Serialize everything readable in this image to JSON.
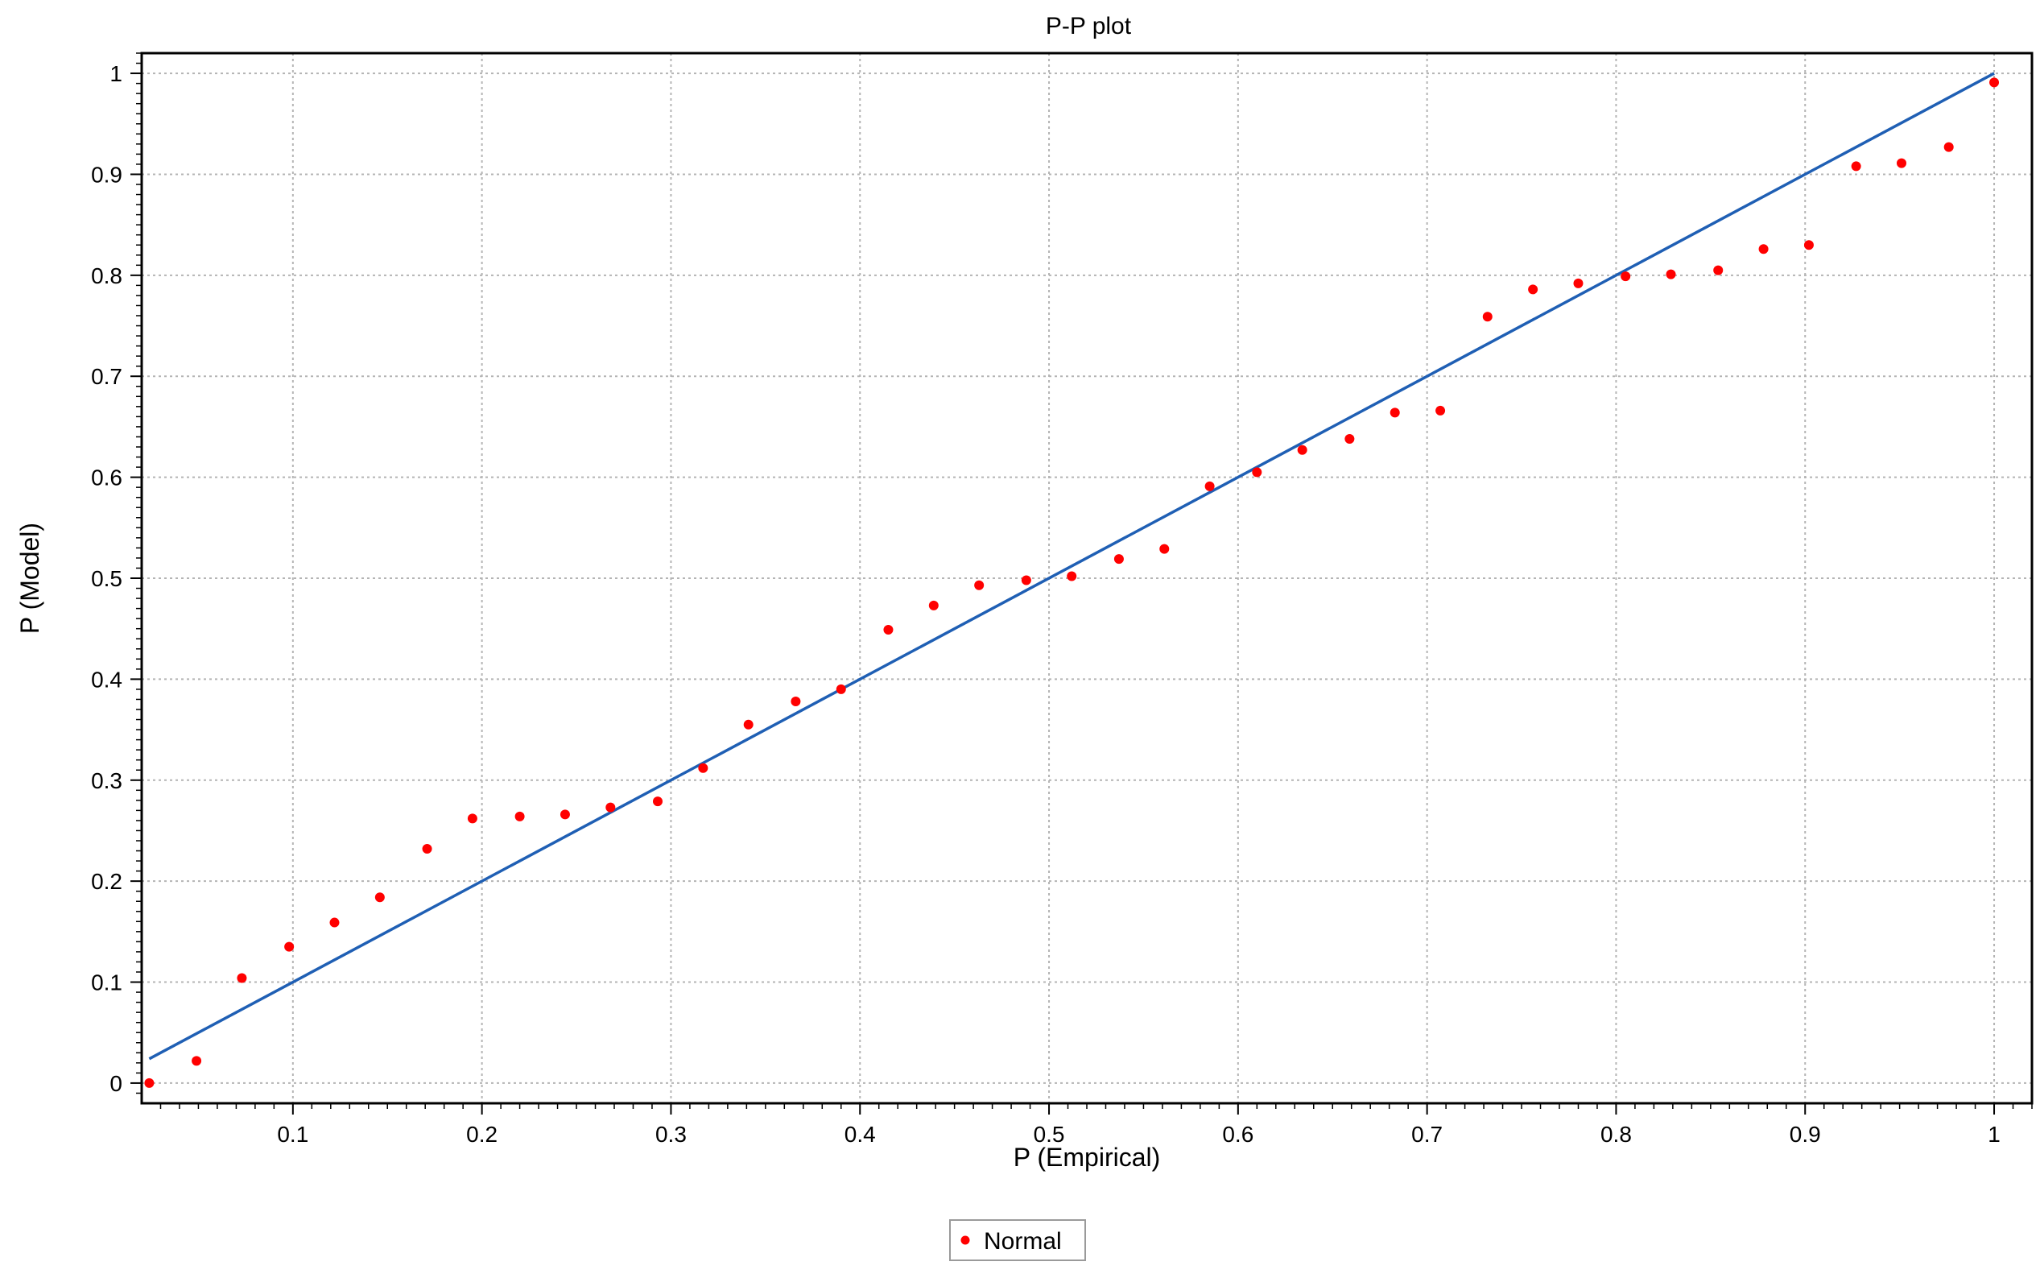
{
  "chart_data": {
    "type": "scatter",
    "title": "P-P plot",
    "xlabel": "P (Empirical)",
    "ylabel": "P (Model)",
    "xlim": [
      0.02,
      1.02
    ],
    "ylim": [
      -0.02,
      1.02
    ],
    "x_ticks": [
      0.1,
      0.2,
      0.3,
      0.4,
      0.5,
      0.6,
      0.7,
      0.8,
      0.9,
      1
    ],
    "x_tick_labels": [
      "0.1",
      "0.2",
      "0.3",
      "0.4",
      "0.5",
      "0.6",
      "0.7",
      "0.8",
      "0.9",
      "1"
    ],
    "y_ticks": [
      0,
      0.1,
      0.2,
      0.3,
      0.4,
      0.5,
      0.6,
      0.7,
      0.8,
      0.9,
      1
    ],
    "y_tick_labels": [
      "0",
      "0.1",
      "0.2",
      "0.3",
      "0.4",
      "0.5",
      "0.6",
      "0.7",
      "0.8",
      "0.9",
      "1"
    ],
    "grid": true,
    "legend_position": "bottom-center",
    "series": [
      {
        "name": "Normal",
        "color": "#ff0000",
        "marker": "circle",
        "points": [
          [
            0.024,
            0.0
          ],
          [
            0.049,
            0.022
          ],
          [
            0.073,
            0.104
          ],
          [
            0.098,
            0.135
          ],
          [
            0.122,
            0.159
          ],
          [
            0.146,
            0.184
          ],
          [
            0.171,
            0.232
          ],
          [
            0.195,
            0.262
          ],
          [
            0.22,
            0.264
          ],
          [
            0.244,
            0.266
          ],
          [
            0.268,
            0.273
          ],
          [
            0.293,
            0.279
          ],
          [
            0.317,
            0.312
          ],
          [
            0.341,
            0.355
          ],
          [
            0.366,
            0.378
          ],
          [
            0.39,
            0.39
          ],
          [
            0.415,
            0.449
          ],
          [
            0.439,
            0.473
          ],
          [
            0.463,
            0.493
          ],
          [
            0.488,
            0.498
          ],
          [
            0.512,
            0.502
          ],
          [
            0.537,
            0.519
          ],
          [
            0.561,
            0.529
          ],
          [
            0.585,
            0.591
          ],
          [
            0.61,
            0.605
          ],
          [
            0.634,
            0.627
          ],
          [
            0.659,
            0.638
          ],
          [
            0.683,
            0.664
          ],
          [
            0.707,
            0.666
          ],
          [
            0.732,
            0.759
          ],
          [
            0.756,
            0.786
          ],
          [
            0.78,
            0.792
          ],
          [
            0.805,
            0.799
          ],
          [
            0.829,
            0.801
          ],
          [
            0.854,
            0.805
          ],
          [
            0.878,
            0.826
          ],
          [
            0.902,
            0.83
          ],
          [
            0.927,
            0.908
          ],
          [
            0.951,
            0.911
          ],
          [
            0.976,
            0.927
          ],
          [
            1.0,
            0.991
          ]
        ]
      },
      {
        "type": "line",
        "color": "#1f5fb4",
        "points": [
          [
            0.024,
            0.024
          ],
          [
            1.0,
            1.0
          ]
        ]
      }
    ]
  }
}
